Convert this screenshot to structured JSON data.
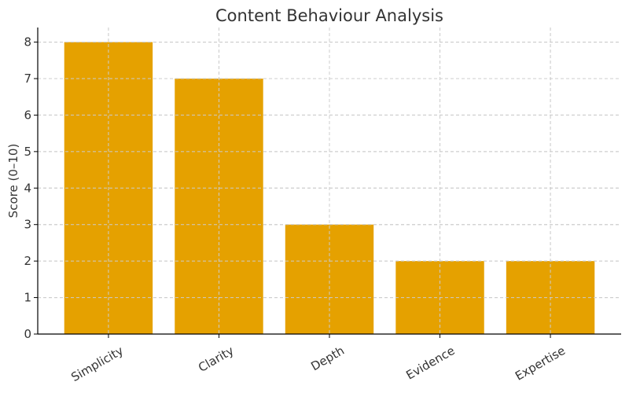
{
  "chart_data": {
    "type": "bar",
    "title": "Content Behaviour Analysis",
    "xlabel": "",
    "ylabel": "Score (0–10)",
    "categories": [
      "Simplicity",
      "Clarity",
      "Depth",
      "Evidence",
      "Expertise"
    ],
    "values": [
      8,
      7,
      3,
      2,
      2
    ],
    "ylim": [
      0,
      8.4
    ],
    "yticks": [
      0,
      1,
      2,
      3,
      4,
      5,
      6,
      7,
      8
    ],
    "grid": true,
    "bar_color": "#e5a100",
    "x_tick_rotation_deg": 30
  }
}
